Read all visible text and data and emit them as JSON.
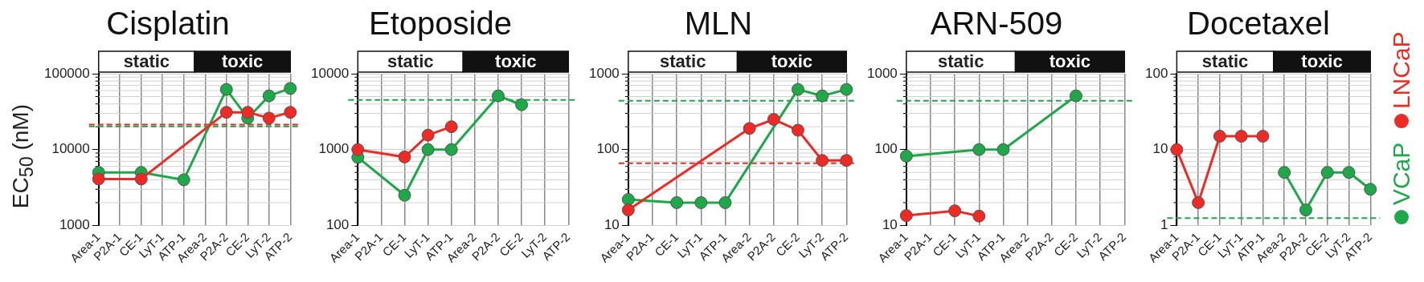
{
  "chart_data": [
    {
      "type": "line",
      "title": "Cisplatin",
      "ylabel": "EC$_{50}$ (nM)",
      "categories": [
        "Area-1",
        "P2A-1",
        "CE-1",
        "LyT-1",
        "ATP-1",
        "Area-2",
        "P2A-2",
        "CE-2",
        "LyT-2",
        "ATP-2"
      ],
      "log": "y",
      "ylim": [
        1000,
        100000
      ],
      "yticks": [
        1000,
        10000,
        100000
      ],
      "grid": true,
      "legend": false,
      "marker": "circle",
      "line_style": "solid",
      "annotations": [
        "static",
        "toxic"
      ],
      "series": [
        {
          "color": "#1fa84a",
          "values": [
            5000,
            null,
            5000,
            null,
            4000,
            null,
            62000,
            26000,
            51000,
            64000
          ]
        },
        {
          "color": "#ee2a24",
          "values": [
            4100,
            null,
            4100,
            null,
            null,
            null,
            31000,
            31000,
            26000,
            31000
          ]
        }
      ],
      "ref_lines": [
        {
          "axis": "y",
          "value": 21400,
          "color": "#ee2a24",
          "line_style": "dashed"
        },
        {
          "axis": "y",
          "value": 20200,
          "color": "#1fa84a",
          "line_style": "dashed"
        }
      ]
    },
    {
      "type": "line",
      "title": "Etoposide",
      "categories": [
        "Area-1",
        "P2A-1",
        "CE-1",
        "LyT-1",
        "ATP-1",
        "Area-2",
        "P2A-2",
        "CE-2",
        "LyT-2",
        "ATP-2"
      ],
      "log": "y",
      "ylim": [
        100,
        10000
      ],
      "yticks": [
        100,
        1000,
        10000
      ],
      "grid": true,
      "legend": false,
      "marker": "circle",
      "line_style": "solid",
      "annotations": [
        "static",
        "toxic"
      ],
      "series": [
        {
          "color": "#1fa84a",
          "values": [
            790,
            null,
            250,
            1000,
            1000,
            null,
            5100,
            3900,
            null,
            null
          ]
        },
        {
          "color": "#ee2a24",
          "values": [
            1000,
            null,
            800,
            1550,
            2000,
            null,
            null,
            null,
            null,
            null
          ]
        }
      ],
      "ref_lines": [
        {
          "axis": "y",
          "value": 4500,
          "color": "#1fa84a",
          "line_style": "dashed"
        }
      ]
    },
    {
      "type": "line",
      "title": "MLN",
      "categories": [
        "Area-1",
        "P2A-1",
        "CE-1",
        "LyT-1",
        "ATP-1",
        "Area-2",
        "P2A-2",
        "CE-2",
        "LyT-2",
        "ATP-2"
      ],
      "log": "y",
      "ylim": [
        10,
        1000
      ],
      "yticks": [
        10,
        100,
        1000
      ],
      "grid": true,
      "legend": false,
      "marker": "circle",
      "line_style": "solid",
      "annotations": [
        "static",
        "toxic"
      ],
      "series": [
        {
          "color": "#1fa84a",
          "values": [
            22,
            null,
            20,
            20,
            20,
            null,
            null,
            620,
            510,
            620
          ]
        },
        {
          "color": "#ee2a24",
          "values": [
            16,
            null,
            null,
            null,
            null,
            190,
            250,
            180,
            72,
            72
          ]
        }
      ],
      "ref_lines": [
        {
          "axis": "y",
          "value": 440,
          "color": "#1fa84a",
          "line_style": "dashed"
        },
        {
          "axis": "y",
          "value": 66,
          "color": "#ee2a24",
          "line_style": "dashed"
        }
      ]
    },
    {
      "type": "line",
      "title": "ARN-509",
      "categories": [
        "Area-1",
        "P2A-1",
        "CE-1",
        "LyT-1",
        "ATP-1",
        "Area-2",
        "P2A-2",
        "CE-2",
        "LyT-2",
        "ATP-2"
      ],
      "log": "y",
      "ylim": [
        10,
        1000
      ],
      "yticks": [
        10,
        100,
        1000
      ],
      "grid": true,
      "legend": false,
      "marker": "circle",
      "line_style": "solid",
      "annotations": [
        "static",
        "toxic"
      ],
      "series": [
        {
          "color": "#1fa84a",
          "values": [
            82,
            null,
            null,
            100,
            100,
            null,
            null,
            510,
            null,
            null
          ]
        },
        {
          "color": "#ee2a24",
          "values": [
            13.5,
            null,
            15.6,
            13.3,
            null,
            null,
            null,
            null,
            null,
            null
          ]
        }
      ],
      "ref_lines": [
        {
          "axis": "y",
          "value": 440,
          "color": "#1fa84a",
          "line_style": "dashed"
        }
      ]
    },
    {
      "type": "line",
      "title": "Docetaxel",
      "categories": [
        "Area-1",
        "P2A-1",
        "CE-1",
        "LyT-1",
        "ATP-1",
        "Area-2",
        "P2A-2",
        "CE-2",
        "LyT-2",
        "ATP-2"
      ],
      "log": "y",
      "ylim": [
        1,
        100
      ],
      "yticks": [
        1,
        10,
        100
      ],
      "grid": true,
      "legend": "right",
      "marker": "circle",
      "line_style": "solid",
      "annotations": [
        "static",
        "toxic"
      ],
      "series": [
        {
          "name": "VCaP",
          "color": "#1fa84a",
          "values": [
            null,
            null,
            null,
            null,
            null,
            5,
            1.6,
            5,
            5,
            3
          ]
        },
        {
          "name": "LNCaP",
          "color": "#ee2a24",
          "values": [
            10,
            2,
            15,
            15,
            15,
            null,
            null,
            null,
            null,
            null
          ]
        }
      ],
      "ref_lines": [
        {
          "axis": "y",
          "value": 1.25,
          "color": "#1fa84a",
          "line_style": "dashed"
        }
      ]
    }
  ]
}
